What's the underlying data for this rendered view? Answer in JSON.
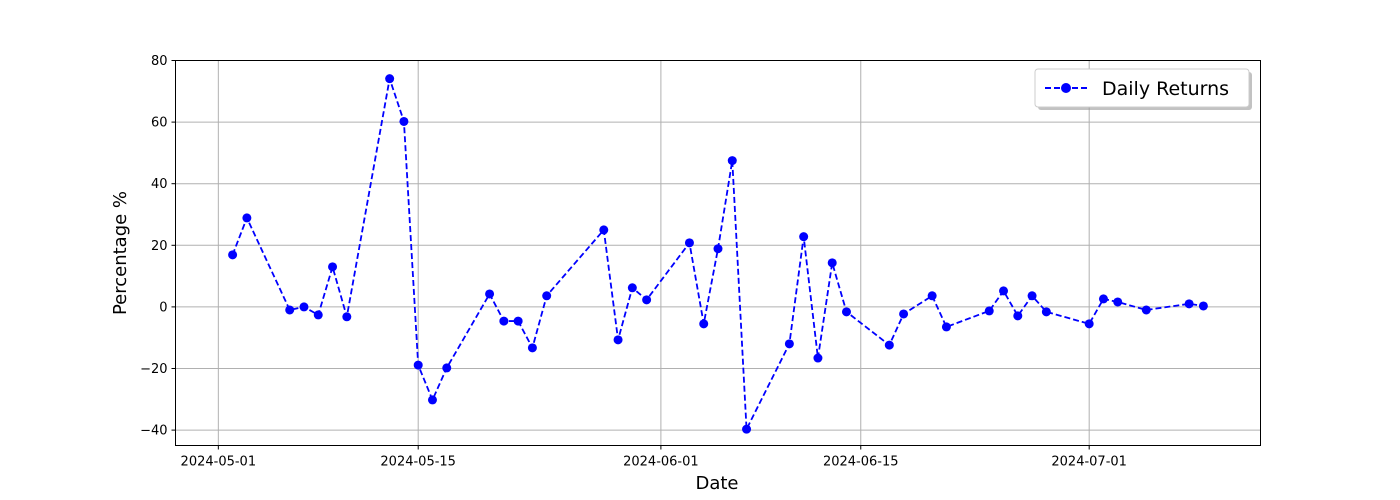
{
  "chart_data": {
    "type": "line",
    "title": "",
    "xlabel": "Date",
    "ylabel": "Percentage %",
    "ylim": [
      -45,
      80
    ],
    "xlim": [
      "2024-04-28",
      "2024-07-13"
    ],
    "grid": true,
    "legend_placement": "top-right",
    "line_style": "dashed",
    "marker": "circle",
    "color": "#0000ff",
    "x_ticks": [
      "2024-05-01",
      "2024-05-15",
      "2024-06-01",
      "2024-06-15",
      "2024-07-01"
    ],
    "y_ticks": [
      -40,
      -20,
      0,
      20,
      40,
      60,
      80
    ],
    "series": [
      {
        "name": "Daily Returns",
        "x": [
          "2024-05-02",
          "2024-05-03",
          "2024-05-06",
          "2024-05-07",
          "2024-05-08",
          "2024-05-09",
          "2024-05-10",
          "2024-05-13",
          "2024-05-14",
          "2024-05-15",
          "2024-05-16",
          "2024-05-17",
          "2024-05-20",
          "2024-05-21",
          "2024-05-22",
          "2024-05-23",
          "2024-05-24",
          "2024-05-28",
          "2024-05-29",
          "2024-05-30",
          "2024-05-31",
          "2024-06-03",
          "2024-06-04",
          "2024-06-05",
          "2024-06-06",
          "2024-06-07",
          "2024-06-10",
          "2024-06-11",
          "2024-06-12",
          "2024-06-13",
          "2024-06-14",
          "2024-06-17",
          "2024-06-18",
          "2024-06-20",
          "2024-06-21",
          "2024-06-24",
          "2024-06-25",
          "2024-06-26",
          "2024-06-27",
          "2024-06-28",
          "2024-07-01",
          "2024-07-02",
          "2024-07-03",
          "2024-07-05",
          "2024-07-08",
          "2024-07-09"
        ],
        "y": [
          16.9,
          28.9,
          -1.0,
          0.0,
          -2.6,
          13.0,
          -3.2,
          74.1,
          60.2,
          -18.9,
          -30.2,
          -19.8,
          4.2,
          -4.6,
          -4.6,
          -13.3,
          3.6,
          25.0,
          -10.7,
          6.2,
          2.3,
          20.8,
          -5.5,
          18.9,
          47.5,
          -39.7,
          -12.0,
          22.8,
          -16.6,
          14.3,
          -1.6,
          -12.4,
          -2.3,
          3.6,
          -6.5,
          -1.3,
          5.2,
          -2.9,
          3.6,
          -1.6,
          -5.5,
          2.6,
          1.6,
          -1.0,
          1.0,
          0.3
        ]
      }
    ]
  }
}
